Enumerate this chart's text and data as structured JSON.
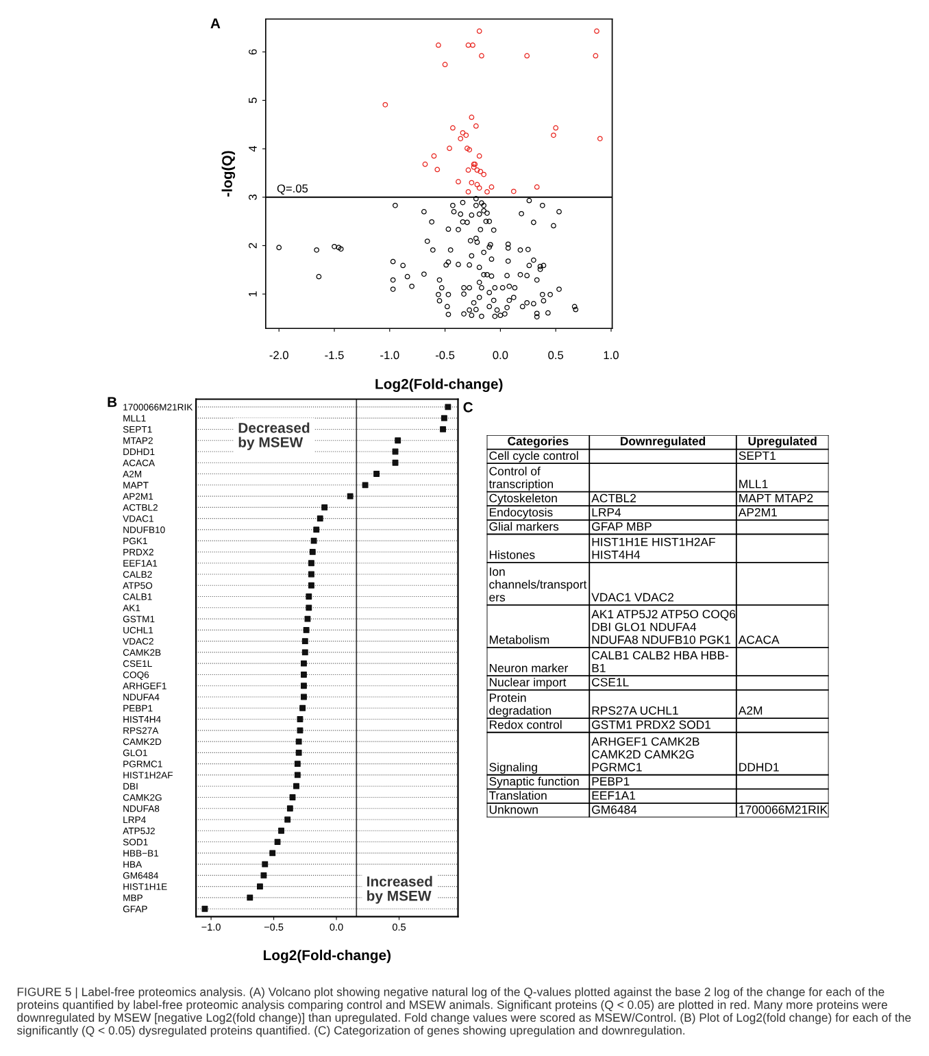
{
  "chart_data": [
    {
      "type": "scatter",
      "title": "A",
      "xlabel": "Log2(Fold-change)",
      "ylabel": "-log(Q)",
      "marker": "circle",
      "legend": false,
      "xlim": [
        -2.12,
        1.01
      ],
      "ylim": [
        0.29,
        6.68
      ],
      "xticks": [
        {
          "value": -2.0,
          "label": "-2.0"
        },
        {
          "value": -1.5,
          "label": "-1.5"
        },
        {
          "value": -1.0,
          "label": "-1.0"
        },
        {
          "value": -0.5,
          "label": "-0.5"
        },
        {
          "value": 0.0,
          "label": "0.0"
        },
        {
          "value": 0.5,
          "label": "0.5"
        },
        {
          "value": 1.0,
          "label": "1.0"
        }
      ],
      "yticks": [
        1,
        2,
        3,
        4,
        5,
        6
      ],
      "ref_lines": [
        {
          "axis": "y",
          "value": 3,
          "label": "Q=.05",
          "color": "#000000"
        }
      ],
      "series": [
        {
          "color": "#e8231d",
          "x": [
            -0.19,
            0.87,
            -0.56,
            -0.29,
            -0.25,
            -0.17,
            0.24,
            0.86,
            -0.5,
            -1.04,
            -0.26,
            -0.22,
            -0.43,
            0.5,
            -0.34,
            -0.31,
            0.48,
            -0.36,
            0.9,
            -0.46,
            -0.3,
            -0.28,
            -0.6,
            -0.19,
            -0.68,
            -0.24,
            -0.23,
            -0.24,
            -0.57,
            -0.29,
            -0.21,
            -0.18,
            -0.15,
            -0.38,
            -0.26,
            -0.21,
            -0.08,
            0.33,
            -0.19,
            -0.29,
            -0.12,
            0.12
          ],
          "values": [
            6.43,
            6.43,
            6.14,
            6.14,
            6.14,
            5.92,
            5.92,
            5.92,
            5.74,
            4.91,
            4.65,
            4.47,
            4.43,
            4.43,
            4.33,
            4.28,
            4.28,
            4.21,
            4.21,
            4.01,
            4.01,
            3.98,
            3.85,
            3.85,
            3.68,
            3.68,
            3.68,
            3.62,
            3.57,
            3.56,
            3.56,
            3.53,
            3.47,
            3.32,
            3.3,
            3.26,
            3.21,
            3.21,
            3.19,
            3.11,
            3.11,
            3.12
          ]
        },
        {
          "color": "#000000",
          "x": [
            -2.0,
            -1.66,
            -1.64,
            -1.5,
            -1.46,
            -1.44,
            -0.97,
            -0.97,
            -0.97,
            -0.95,
            -0.88,
            -0.84,
            -0.8,
            -0.69,
            -0.69,
            -0.66,
            -0.62,
            -0.61,
            -0.55,
            -0.56,
            -0.55,
            -0.48,
            -0.47,
            -0.47,
            -0.45,
            -0.43,
            -0.42,
            -0.47,
            -0.49,
            -0.53,
            -0.47,
            -0.38,
            -0.38,
            -0.34,
            -0.34,
            -0.3,
            -0.33,
            -0.36,
            -0.27,
            -0.26,
            -0.28,
            -0.33,
            -0.26,
            -0.22,
            -0.22,
            -0.22,
            -0.19,
            -0.18,
            -0.17,
            -0.15,
            -0.15,
            -0.13,
            -0.12,
            -0.1,
            -0.06,
            -0.09,
            -0.08,
            -0.21,
            -0.1,
            -0.15,
            -0.19,
            -0.12,
            -0.08,
            -0.17,
            -0.1,
            -0.06,
            -0.03,
            0.0,
            0.04,
            -0.05,
            0.06,
            0.08,
            0.12,
            -0.19,
            -0.24,
            -0.17,
            -0.22,
            -0.28,
            -0.26,
            0.07,
            0.07,
            0.07,
            0.06,
            0.08,
            0.18,
            0.19,
            0.26,
            0.25,
            0.3,
            0.26,
            0.3,
            0.24,
            0.18,
            0.33,
            0.3,
            0.33,
            0.33,
            0.36,
            0.38,
            0.39,
            0.38,
            0.39,
            0.43,
            0.45,
            0.48,
            0.53,
            0.53,
            0.67,
            0.68,
            0.36,
            0.2,
            0.24,
            0.13,
            0.02,
            -0.05,
            -0.28,
            -0.33,
            -0.19,
            -0.15,
            -0.1
          ],
          "values": [
            1.96,
            1.91,
            1.36,
            1.98,
            1.96,
            1.93,
            1.67,
            1.29,
            1.1,
            2.83,
            1.59,
            1.36,
            1.16,
            1.41,
            2.7,
            2.09,
            2.49,
            1.91,
            1.29,
            0.99,
            0.86,
            0.74,
            0.58,
            2.34,
            1.91,
            2.83,
            2.7,
            1.66,
            1.6,
            1.13,
            0.99,
            2.33,
            1.61,
            2.89,
            2.49,
            2.48,
            0.59,
            2.65,
            2.1,
            1.79,
            1.6,
            1.13,
            2.63,
            2.97,
            2.83,
            2.15,
            2.65,
            2.33,
            2.88,
            2.83,
            2.72,
            2.5,
            2.67,
            2.5,
            2.32,
            2.02,
            1.72,
            2.07,
            1.97,
            1.86,
            1.55,
            1.4,
            1.37,
            1.13,
            1.03,
            0.87,
            0.67,
            0.56,
            0.59,
            0.54,
            0.72,
            0.87,
            0.93,
            0.93,
            0.82,
            0.54,
            0.68,
            0.67,
            0.56,
            2.03,
            1.95,
            1.68,
            1.38,
            1.16,
            1.91,
            2.66,
            2.93,
            1.92,
            2.48,
            1.59,
            1.7,
            1.38,
            1.4,
            1.29,
            0.8,
            0.6,
            0.53,
            1.51,
            2.83,
            1.59,
            0.99,
            0.86,
            0.61,
            0.99,
            2.41,
            2.7,
            1.1,
            0.74,
            0.68,
            1.57,
            0.74,
            0.82,
            1.13,
            1.13,
            1.13,
            1.13,
            1.0,
            1.24,
            1.4,
            0.74
          ]
        }
      ]
    },
    {
      "type": "scatter",
      "title": "B",
      "xlabel": "Log2(Fold-change)",
      "orientation": "horizontal",
      "marker": "square",
      "grid": "y",
      "legend": false,
      "categories": [
        "1700066M21RIK",
        "MLL1",
        "SEPT1",
        "MTAP2",
        "DDHD1",
        "ACACA",
        "A2M",
        "MAPT",
        "AP2M1",
        "ACTBL2",
        "VDAC1",
        "NDUFB10",
        "PGK1",
        "PRDX2",
        "EEF1A1",
        "CALB2",
        "ATP5O",
        "CALB1",
        "AK1",
        "GSTM1",
        "UCHL1",
        "VDAC2",
        "CAMK2B",
        "CSE1L",
        "COQ6",
        "ARHGEF1",
        "NDUFA4",
        "PEBP1",
        "HIST4H4",
        "RPS27A",
        "CAMK2D",
        "GLO1",
        "PGRMC1",
        "HIST1H2AF",
        "DBI",
        "CAMK2G",
        "NDUFA8",
        "LRP4",
        "ATP5J2",
        "SOD1",
        "HBB−B1",
        "HBA",
        "GM6484",
        "HIST1H1E",
        "MBP",
        "GFAP"
      ],
      "series": [
        {
          "color": "#111111",
          "values": [
            0.89,
            0.86,
            0.85,
            0.49,
            0.47,
            0.47,
            0.32,
            0.23,
            0.11,
            -0.095,
            -0.13,
            -0.16,
            -0.18,
            -0.19,
            -0.2,
            -0.2,
            -0.2,
            -0.22,
            -0.22,
            -0.23,
            -0.24,
            -0.25,
            -0.25,
            -0.26,
            -0.26,
            -0.26,
            -0.26,
            -0.27,
            -0.29,
            -0.29,
            -0.3,
            -0.3,
            -0.31,
            -0.31,
            -0.32,
            -0.35,
            -0.37,
            -0.39,
            -0.44,
            -0.47,
            -0.51,
            -0.57,
            -0.58,
            -0.61,
            -0.69,
            -1.05
          ]
        }
      ],
      "xlim": [
        -1.12,
        0.97
      ],
      "xticks": [
        {
          "value": -1.0,
          "label": "−1.0"
        },
        {
          "value": -0.5,
          "label": "−0.5"
        },
        {
          "value": 0.0,
          "label": "0.0"
        },
        0.5
      ],
      "ref_lines": [
        {
          "axis": "x",
          "value": 0.16,
          "color": "#333333"
        }
      ],
      "annotations": [
        "Decreased\nby MSEW",
        "Increased\nby MSEW"
      ]
    },
    {
      "type": "other",
      "title": "C",
      "categories": [
        "Categories",
        "Downregulated",
        "Upregulated"
      ],
      "cell_labels": [
        [
          "Cell cycle control",
          null,
          "SEPT1"
        ],
        [
          "Control of\ntranscription",
          null,
          "MLL1"
        ],
        [
          "Cytoskeleton",
          "ACTBL2",
          "MAPT MTAP2"
        ],
        [
          "Endocytosis",
          "LRP4",
          "AP2M1"
        ],
        [
          "Glial markers",
          "GFAP MBP",
          null
        ],
        [
          "Histones",
          "HIST1H1E HIST1H2AF\nHIST4H4",
          null
        ],
        [
          "Ion\nchannels/transport\ners",
          "VDAC1 VDAC2",
          null
        ],
        [
          "Metabolism",
          "AK1 ATP5J2 ATP5O COQ6\nDBI GLO1 NDUFA4\nNDUFA8 NDUFB10 PGK1",
          "ACACA"
        ],
        [
          "Neuron marker",
          "CALB1 CALB2 HBA HBB-\nB1",
          null
        ],
        [
          "Nuclear import",
          "CSE1L",
          null
        ],
        [
          "Protein\ndegradation",
          "RPS27A UCHL1",
          "A2M"
        ],
        [
          "Redox control",
          "GSTM1 PRDX2 SOD1",
          null
        ],
        [
          "Signaling",
          "ARHGEF1 CAMK2B\nCAMK2D CAMK2G\nPGRMC1",
          "DDHD1"
        ],
        [
          "Synaptic function",
          "PEBP1",
          null
        ],
        [
          "Translation",
          "EEF1A1",
          null
        ],
        [
          "Unknown",
          "GM6484",
          "1700066M21RIK"
        ]
      ],
      "annotations": [
        "FIGURE 5 | Label-free proteomics analysis. (A) Volcano plot showing negative natural log of the Q-values plotted against the base 2 log of the change for each of the proteins quantified by label-free proteomic analysis comparing control and MSEW animals. Significant proteins (Q < 0.05) are plotted in red. Many more proteins were downregulated by MSEW [negative Log2(fold change)] than upregulated. Fold change values were scored as MSEW/Control. (B) Plot of Log2(fold change) for each of the significantly (Q < 0.05) dysregulated proteins quantified. (C) Categorization of genes showing upregulation and downregulation."
      ]
    }
  ]
}
